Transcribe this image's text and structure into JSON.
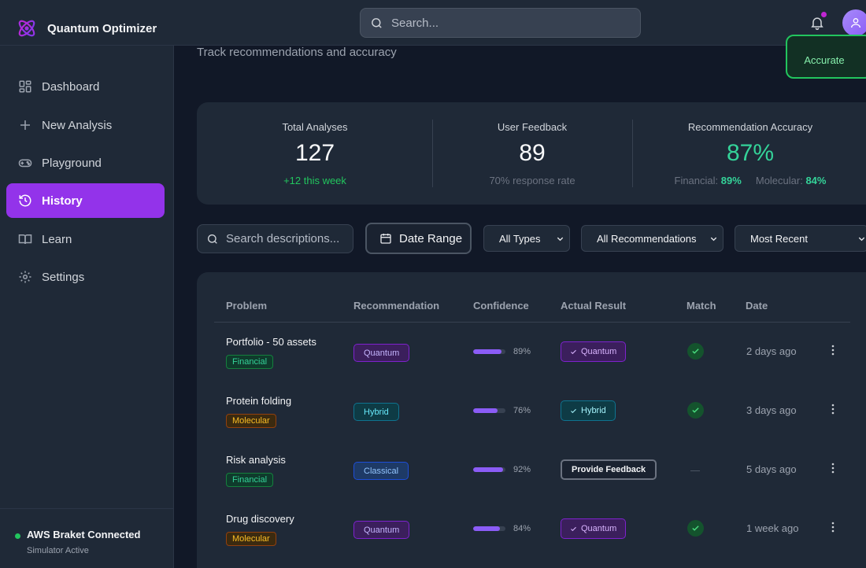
{
  "app": {
    "name": "Quantum Optimizer"
  },
  "search": {
    "placeholder": "Search..."
  },
  "sidebar": {
    "items": [
      {
        "label": "Dashboard",
        "icon": "grid-icon"
      },
      {
        "label": "New Analysis",
        "icon": "plus-icon"
      },
      {
        "label": "Playground",
        "icon": "gamepad-icon"
      },
      {
        "label": "History",
        "icon": "history-icon",
        "active": true
      },
      {
        "label": "Learn",
        "icon": "book-icon"
      },
      {
        "label": "Settings",
        "icon": "gear-icon"
      }
    ],
    "status": {
      "title": "AWS Braket Connected",
      "subtitle": "Simulator Active"
    }
  },
  "page": {
    "subtitle": "Track recommendations and accuracy",
    "accurate_label": "Accurate"
  },
  "stats": {
    "total": {
      "label": "Total Analyses",
      "value": "127",
      "sub": "+12 this week"
    },
    "feedback": {
      "label": "User Feedback",
      "value": "89",
      "sub": "70% response rate"
    },
    "accuracy": {
      "label": "Recommendation Accuracy",
      "value": "87%",
      "financial_label": "Financial:",
      "financial_value": "89%",
      "molecular_label": "Molecular:",
      "molecular_value": "84%"
    }
  },
  "filters": {
    "search_placeholder": "Search descriptions...",
    "date_range": "Date Range",
    "type": "All Types",
    "recommendation": "All Recommendations",
    "sort": "Most Recent"
  },
  "table": {
    "headers": [
      "Problem",
      "Recommendation",
      "Confidence",
      "Actual Result",
      "Match",
      "Date"
    ],
    "rows": [
      {
        "problem": "Portfolio - 50 assets",
        "category": "Financial",
        "recommendation": "Quantum",
        "confidence": 89,
        "confidence_text": "89%",
        "actual": "Quantum",
        "matched": true,
        "date": "2 days ago"
      },
      {
        "problem": "Protein folding",
        "category": "Molecular",
        "recommendation": "Hybrid",
        "confidence": 76,
        "confidence_text": "76%",
        "actual": "Hybrid",
        "matched": true,
        "date": "3 days ago"
      },
      {
        "problem": "Risk analysis",
        "category": "Financial",
        "recommendation": "Classical",
        "confidence": 92,
        "confidence_text": "92%",
        "actual": "Provide Feedback",
        "matched": null,
        "match_text": "—",
        "date": "5 days ago"
      },
      {
        "problem": "Drug discovery",
        "category": "Molecular",
        "recommendation": "Quantum",
        "confidence": 84,
        "confidence_text": "84%",
        "actual": "Quantum",
        "matched": true,
        "date": "1 week ago"
      }
    ]
  },
  "colors": {
    "accent": "#9333ea",
    "success": "#22c55e",
    "background": "#111827",
    "surface": "#1f2937"
  }
}
